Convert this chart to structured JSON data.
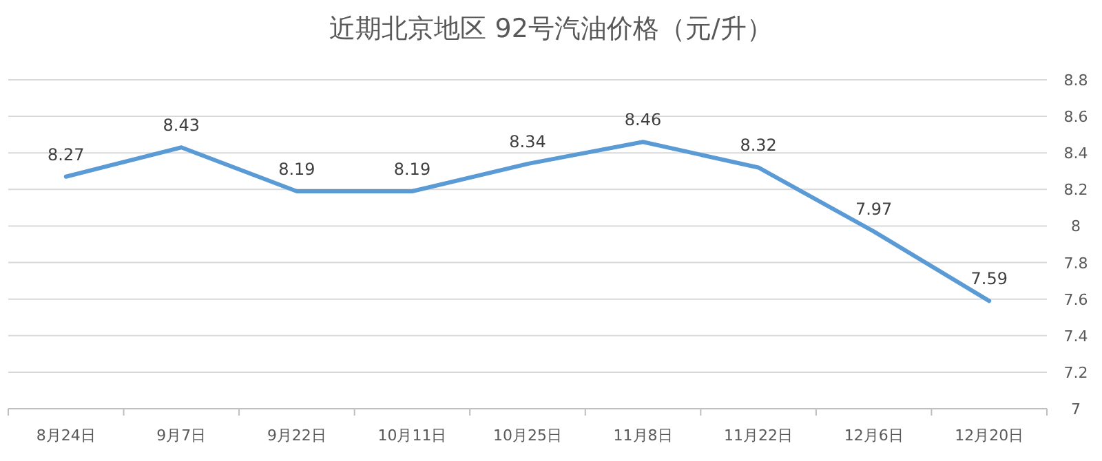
{
  "chart_data": {
    "type": "line",
    "title": "近期北京地区 92号汽油价格（元/升）",
    "categories": [
      "8月24日",
      "9月7日",
      "9月22日",
      "10月11日",
      "10月25日",
      "11月8日",
      "11月22日",
      "12月6日",
      "12月20日"
    ],
    "series": [
      {
        "color": "#5b9bd5",
        "values": [
          8.27,
          8.43,
          8.19,
          8.19,
          8.34,
          8.46,
          8.32,
          7.97,
          7.59
        ]
      }
    ],
    "ylim": [
      7,
      8.8
    ],
    "yticks": [
      7,
      7.2,
      7.4,
      7.6,
      7.8,
      8,
      8.2,
      8.4,
      8.6,
      8.8
    ],
    "grid": "y",
    "data_labels": true,
    "marker": "none",
    "line_style": "solid"
  }
}
